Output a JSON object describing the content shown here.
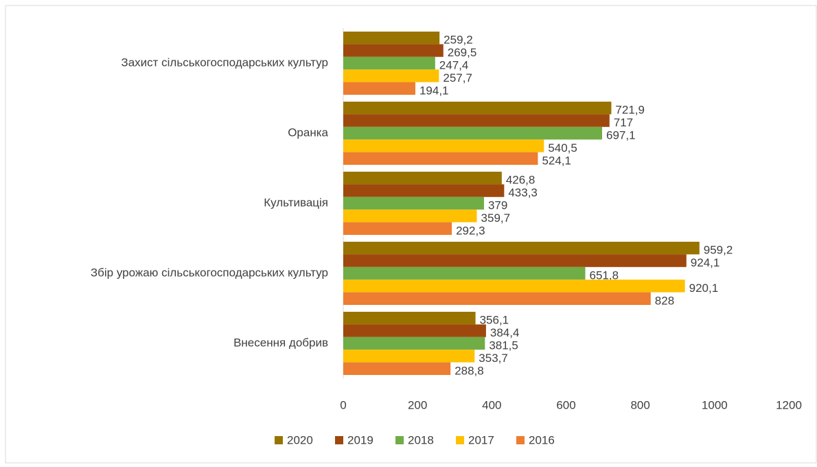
{
  "chart_data": {
    "type": "bar",
    "orientation": "horizontal",
    "categories": [
      "Захист сільськогосподарських культур",
      "Оранка",
      "Культивація",
      "Збір урожаю сільськогосподарських культур",
      "Внесення добрив"
    ],
    "series": [
      {
        "name": "2020",
        "color": "#997300",
        "values": [
          259.2,
          721.9,
          426.8,
          959.2,
          356.1
        ],
        "value_labels": [
          "259,2",
          "721,9",
          "426,8",
          "959,2",
          "356,1"
        ]
      },
      {
        "name": "2019",
        "color": "#9e480e",
        "values": [
          269.5,
          717,
          433.3,
          924.1,
          384.4
        ],
        "value_labels": [
          "269,5",
          "717",
          "433,3",
          "924,1",
          "384,4"
        ]
      },
      {
        "name": "2018",
        "color": "#70ad47",
        "values": [
          247.4,
          697.1,
          379,
          651.8,
          381.5
        ],
        "value_labels": [
          "247,4",
          "697,1",
          "379",
          "651,8",
          "381,5"
        ]
      },
      {
        "name": "2017",
        "color": "#ffc000",
        "values": [
          257.7,
          540.5,
          359.7,
          920.1,
          353.7
        ],
        "value_labels": [
          "257,7",
          "540,5",
          "359,7",
          "920,1",
          "353,7"
        ]
      },
      {
        "name": "2016",
        "color": "#ed7d31",
        "values": [
          194.1,
          524.1,
          292.3,
          828,
          288.8
        ],
        "value_labels": [
          "194,1",
          "524,1",
          "292,3",
          "828",
          "288,8"
        ]
      }
    ],
    "xlim": [
      0,
      1200
    ],
    "xticks": [
      0,
      200,
      400,
      600,
      800,
      1000,
      1200
    ],
    "legend": "bottom"
  }
}
